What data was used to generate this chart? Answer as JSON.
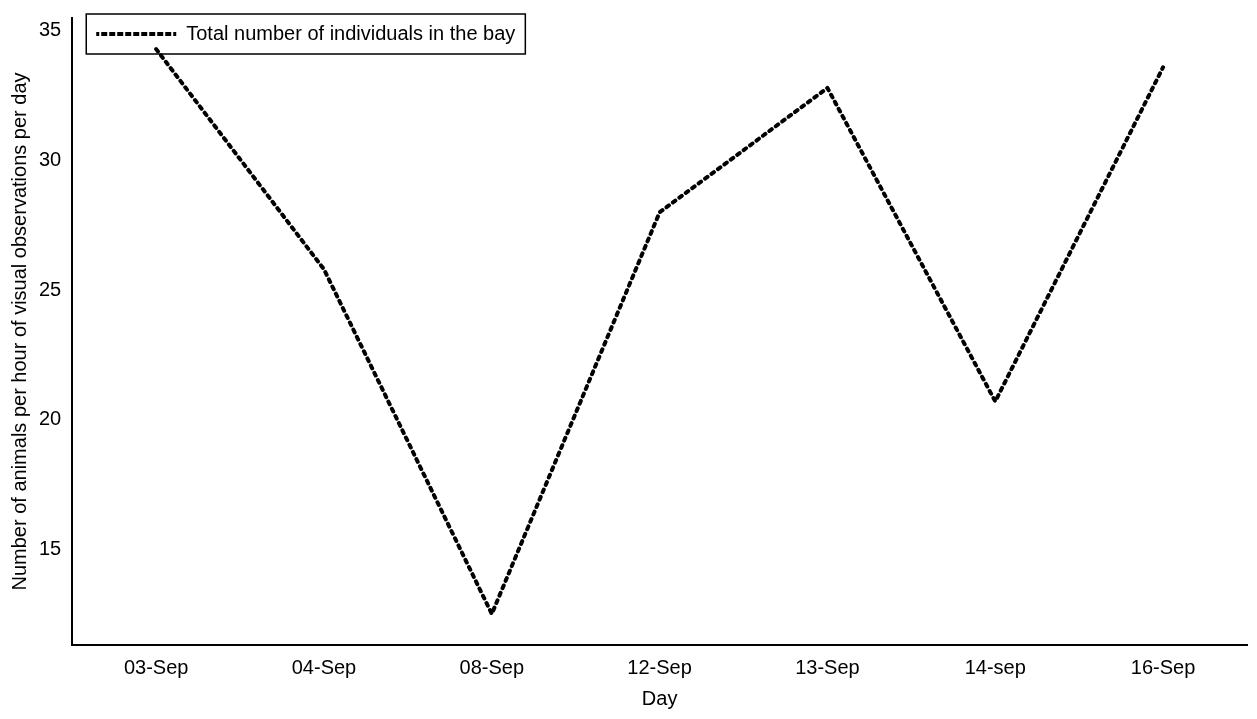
{
  "chart_data": {
    "type": "line",
    "xlabel": "Day",
    "ylabel": "Number of animals per hour of visual observations per day",
    "categories": [
      "03-Sep",
      "04-Sep",
      "08-Sep",
      "12-Sep",
      "13-Sep",
      "14-sep",
      "16-Sep"
    ],
    "series": [
      {
        "name": "Total number of individuals in the bay",
        "color": "#000000",
        "values": [
          34.3,
          25.8,
          12.5,
          28.0,
          32.8,
          20.7,
          33.6
        ]
      }
    ],
    "ylim": [
      11.3,
      35.5
    ],
    "yticks": [
      15,
      20,
      25,
      30,
      35
    ],
    "grid": false,
    "legend": "top left",
    "marker": "none",
    "line_style": "dotted"
  }
}
